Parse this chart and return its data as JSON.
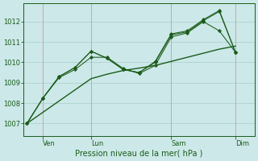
{
  "background_color": "#cce8e8",
  "grid_color": "#aacccc",
  "line_color": "#1a5c1a",
  "xlabel": "Pression niveau de la mer( hPa )",
  "yticks": [
    1007,
    1008,
    1009,
    1010,
    1011,
    1012
  ],
  "ylim": [
    1006.4,
    1012.9
  ],
  "xtick_labels": [
    "Ven",
    "Lun",
    "Sam",
    "Dim"
  ],
  "xtick_positions": [
    1,
    4,
    9,
    13
  ],
  "xlim": [
    -0.2,
    14.2
  ],
  "x": [
    0,
    1,
    2,
    3,
    4,
    5,
    6,
    7,
    8,
    9,
    10,
    11,
    12,
    13
  ],
  "trend": [
    1007.0,
    1007.55,
    1008.1,
    1008.65,
    1009.2,
    1009.42,
    1009.6,
    1009.72,
    1009.85,
    1010.05,
    1010.25,
    1010.45,
    1010.65,
    1010.8
  ],
  "line2": [
    1007.0,
    1008.25,
    1009.25,
    1009.65,
    1010.25,
    1010.25,
    1009.7,
    1009.45,
    1009.85,
    1011.25,
    1011.45,
    1012.0,
    1011.55,
    1010.5
  ],
  "line3": [
    1007.0,
    1008.25,
    1009.3,
    1009.75,
    1010.55,
    1010.2,
    1009.65,
    1009.5,
    1010.0,
    1011.35,
    1011.5,
    1012.05,
    1012.5,
    1010.5
  ],
  "line4": [
    1007.0,
    1008.25,
    1009.3,
    1009.75,
    1010.55,
    1010.2,
    1009.65,
    1009.5,
    1010.05,
    1011.4,
    1011.55,
    1012.1,
    1012.55,
    1010.5
  ]
}
